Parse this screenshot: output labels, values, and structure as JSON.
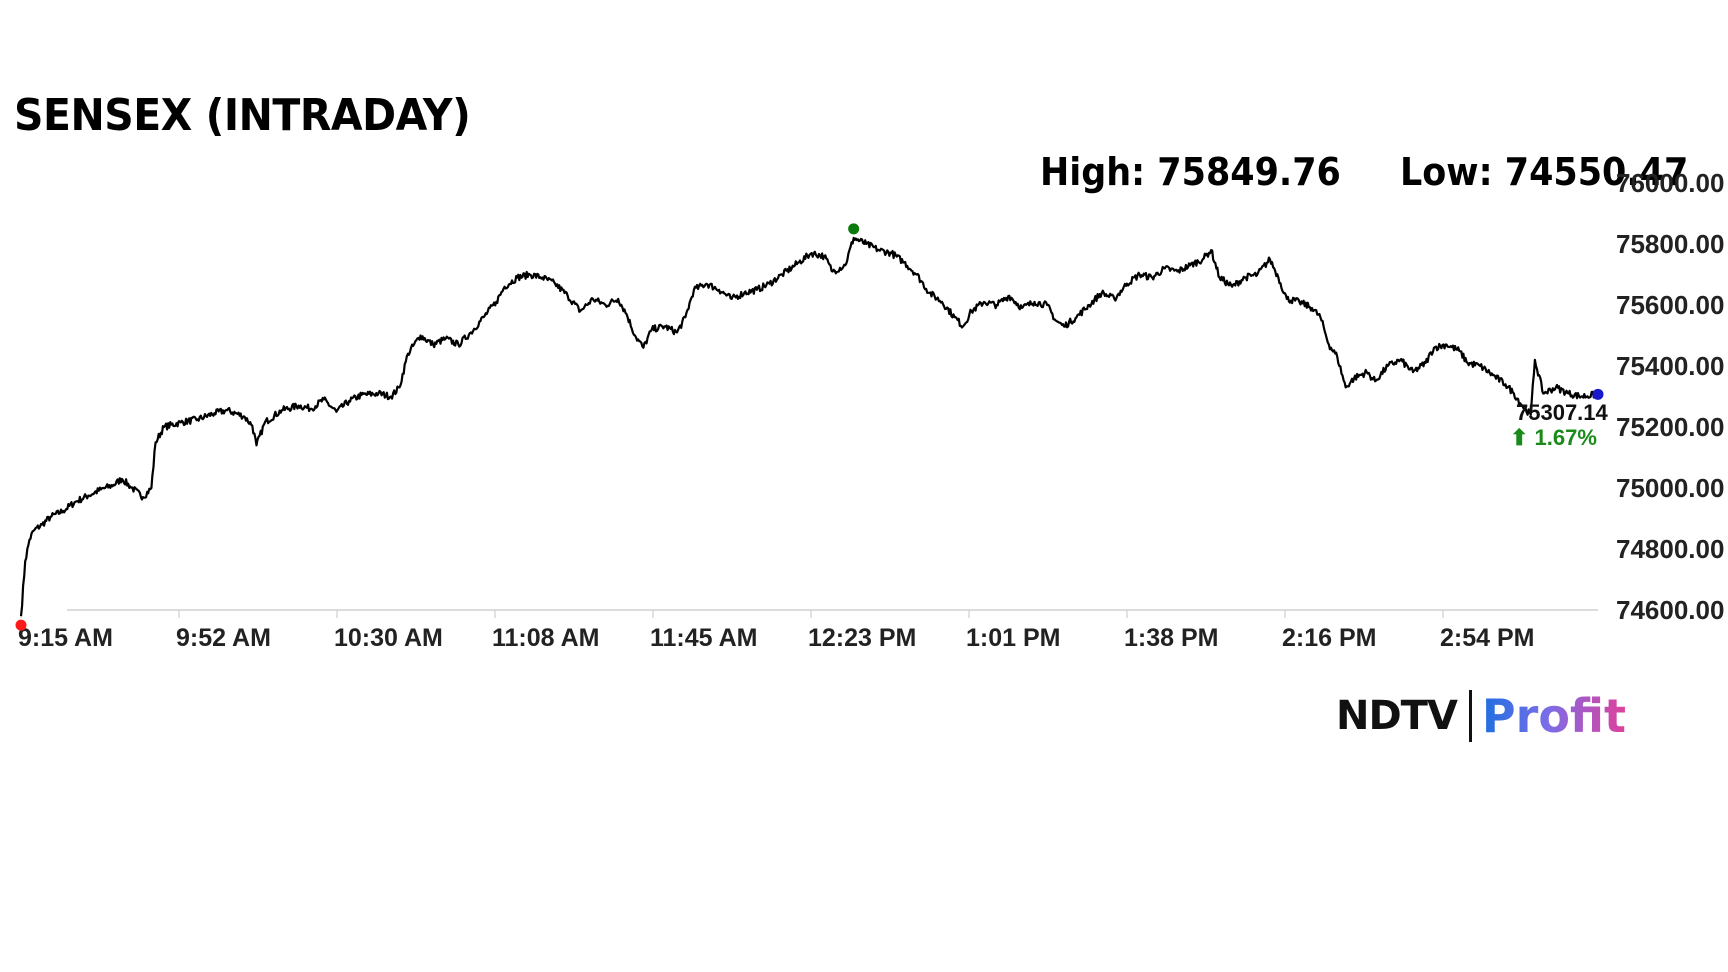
{
  "header": {
    "title": "SENSEX (INTRADAY)",
    "high_text": "High: 75849.76",
    "low_text": "Low: 74550.47"
  },
  "brand": {
    "ndtv": "NDTV",
    "profit": "Profit"
  },
  "chart_data": {
    "type": "line",
    "title": "SENSEX (INTRADAY)",
    "xlabel": "",
    "ylabel": "",
    "x_tick_labels": [
      "9:15 AM",
      "9:52 AM",
      "10:30 AM",
      "11:08 AM",
      "11:45 AM",
      "12:23 PM",
      "1:01 PM",
      "1:38 PM",
      "2:16 PM",
      "2:54 PM"
    ],
    "y_tick_labels": [
      "74600.00",
      "74800.00",
      "75000.00",
      "75200.00",
      "75400.00",
      "75600.00",
      "75800.00",
      "76000.00"
    ],
    "ylim": [
      74600,
      76000
    ],
    "x_minutes_range": [
      555,
      930
    ],
    "grid": false,
    "high": 75849.76,
    "low": 74550.47,
    "last_value": "75307.14",
    "change_text": "⬆ 1.67%",
    "markers": [
      {
        "name": "open-low",
        "minute": 555,
        "value": 74550.47,
        "color": "#ff1a1a"
      },
      {
        "name": "day-high",
        "minute": 753,
        "value": 75849.76,
        "color": "#0a7a0a"
      },
      {
        "name": "last",
        "minute": 930,
        "value": 75307.14,
        "color": "#1a1acc"
      }
    ],
    "series": [
      {
        "color": "#000000",
        "points": [
          [
            555,
            74580
          ],
          [
            556,
            74760
          ],
          [
            557,
            74830
          ],
          [
            558,
            74860
          ],
          [
            560,
            74880
          ],
          [
            562,
            74905
          ],
          [
            565,
            74925
          ],
          [
            568,
            74955
          ],
          [
            571,
            74975
          ],
          [
            574,
            74995
          ],
          [
            577,
            75010
          ],
          [
            579,
            75030
          ],
          [
            581,
            75005
          ],
          [
            584,
            74970
          ],
          [
            586,
            75000
          ],
          [
            587,
            75150
          ],
          [
            589,
            75200
          ],
          [
            593,
            75215
          ],
          [
            597,
            75225
          ],
          [
            601,
            75245
          ],
          [
            604,
            75255
          ],
          [
            608,
            75235
          ],
          [
            610,
            75205
          ],
          [
            611,
            75140
          ],
          [
            613,
            75215
          ],
          [
            617,
            75255
          ],
          [
            621,
            75270
          ],
          [
            624,
            75260
          ],
          [
            627,
            75290
          ],
          [
            630,
            75250
          ],
          [
            633,
            75285
          ],
          [
            636,
            75305
          ],
          [
            640,
            75310
          ],
          [
            643,
            75300
          ],
          [
            645,
            75330
          ],
          [
            647,
            75440
          ],
          [
            650,
            75500
          ],
          [
            653,
            75470
          ],
          [
            656,
            75490
          ],
          [
            659,
            75470
          ],
          [
            662,
            75510
          ],
          [
            665,
            75560
          ],
          [
            668,
            75610
          ],
          [
            670,
            75660
          ],
          [
            673,
            75690
          ],
          [
            676,
            75700
          ],
          [
            679,
            75690
          ],
          [
            682,
            75670
          ],
          [
            685,
            75630
          ],
          [
            688,
            75580
          ],
          [
            691,
            75620
          ],
          [
            694,
            75600
          ],
          [
            697,
            75620
          ],
          [
            699,
            75570
          ],
          [
            701,
            75500
          ],
          [
            703,
            75460
          ],
          [
            705,
            75520
          ],
          [
            708,
            75530
          ],
          [
            711,
            75510
          ],
          [
            713,
            75560
          ],
          [
            715,
            75650
          ],
          [
            718,
            75670
          ],
          [
            721,
            75650
          ],
          [
            724,
            75620
          ],
          [
            727,
            75640
          ],
          [
            730,
            75650
          ],
          [
            733,
            75670
          ],
          [
            736,
            75700
          ],
          [
            740,
            75740
          ],
          [
            743,
            75770
          ],
          [
            746,
            75760
          ],
          [
            748,
            75710
          ],
          [
            751,
            75730
          ],
          [
            753,
            75820
          ],
          [
            756,
            75800
          ],
          [
            759,
            75780
          ],
          [
            762,
            75770
          ],
          [
            765,
            75740
          ],
          [
            768,
            75700
          ],
          [
            771,
            75640
          ],
          [
            774,
            75610
          ],
          [
            777,
            75560
          ],
          [
            779,
            75530
          ],
          [
            781,
            75580
          ],
          [
            784,
            75610
          ],
          [
            787,
            75600
          ],
          [
            790,
            75630
          ],
          [
            793,
            75590
          ],
          [
            796,
            75610
          ],
          [
            799,
            75600
          ],
          [
            801,
            75550
          ],
          [
            803,
            75530
          ],
          [
            806,
            75560
          ],
          [
            809,
            75600
          ],
          [
            812,
            75640
          ],
          [
            815,
            75620
          ],
          [
            818,
            75670
          ],
          [
            821,
            75700
          ],
          [
            824,
            75690
          ],
          [
            827,
            75720
          ],
          [
            830,
            75710
          ],
          [
            833,
            75730
          ],
          [
            836,
            75750
          ],
          [
            838,
            75780
          ],
          [
            840,
            75690
          ],
          [
            843,
            75660
          ],
          [
            846,
            75690
          ],
          [
            849,
            75700
          ],
          [
            852,
            75750
          ],
          [
            854,
            75690
          ],
          [
            856,
            75620
          ],
          [
            859,
            75610
          ],
          [
            862,
            75590
          ],
          [
            864,
            75560
          ],
          [
            866,
            75470
          ],
          [
            868,
            75430
          ],
          [
            870,
            75330
          ],
          [
            872,
            75360
          ],
          [
            875,
            75380
          ],
          [
            877,
            75350
          ],
          [
            880,
            75400
          ],
          [
            883,
            75420
          ],
          [
            886,
            75380
          ],
          [
            889,
            75410
          ],
          [
            891,
            75460
          ],
          [
            894,
            75470
          ],
          [
            897,
            75450
          ],
          [
            899,
            75410
          ],
          [
            902,
            75400
          ],
          [
            905,
            75370
          ],
          [
            908,
            75340
          ],
          [
            910,
            75310
          ],
          [
            912,
            75270
          ],
          [
            914,
            75240
          ],
          [
            915,
            75420
          ],
          [
            917,
            75310
          ],
          [
            920,
            75330
          ],
          [
            923,
            75310
          ],
          [
            926,
            75300
          ],
          [
            930,
            75307
          ]
        ]
      }
    ]
  }
}
